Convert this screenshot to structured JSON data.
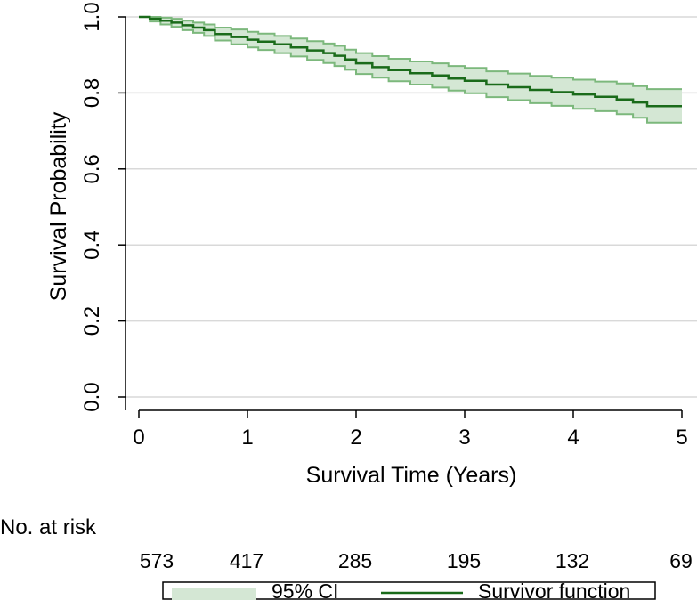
{
  "chart_data": {
    "type": "line",
    "title": "",
    "xlabel": "Survival Time (Years)",
    "ylabel": "Survival Probability",
    "xlim": [
      0,
      5
    ],
    "ylim": [
      0,
      1
    ],
    "x_ticks": [
      0,
      1,
      2,
      3,
      4,
      5
    ],
    "x_tick_labels": [
      "0",
      "1",
      "2",
      "3",
      "4",
      "5"
    ],
    "y_ticks": [
      0,
      0.2,
      0.4,
      0.6,
      0.8,
      1.0
    ],
    "y_tick_labels": [
      "0.0",
      "0.2",
      "0.4",
      "0.6",
      "0.8",
      "1.0"
    ],
    "grid": true,
    "series": [
      {
        "name": "Survivor function",
        "color": "#1a6b1a",
        "step": true,
        "x": [
          0,
          0.1,
          0.2,
          0.3,
          0.4,
          0.5,
          0.6,
          0.7,
          0.85,
          1.0,
          1.1,
          1.25,
          1.4,
          1.55,
          1.7,
          1.8,
          1.9,
          2.0,
          2.15,
          2.3,
          2.5,
          2.7,
          2.85,
          3.0,
          3.2,
          3.4,
          3.6,
          3.8,
          4.0,
          4.2,
          4.4,
          4.55,
          4.68,
          5.0
        ],
        "values": [
          1.0,
          0.995,
          0.99,
          0.985,
          0.978,
          0.972,
          0.965,
          0.955,
          0.947,
          0.94,
          0.935,
          0.928,
          0.92,
          0.912,
          0.905,
          0.898,
          0.888,
          0.878,
          0.868,
          0.86,
          0.852,
          0.846,
          0.838,
          0.832,
          0.822,
          0.815,
          0.808,
          0.802,
          0.796,
          0.79,
          0.783,
          0.775,
          0.765,
          0.765
        ]
      },
      {
        "name": "95% CI",
        "color": "#7cb87c",
        "fill": "#d4e7d4",
        "step": true,
        "x": [
          0,
          0.1,
          0.2,
          0.3,
          0.4,
          0.5,
          0.6,
          0.7,
          0.85,
          1.0,
          1.1,
          1.25,
          1.4,
          1.55,
          1.7,
          1.8,
          1.9,
          2.0,
          2.15,
          2.3,
          2.5,
          2.7,
          2.85,
          3.0,
          3.2,
          3.4,
          3.6,
          3.8,
          4.0,
          4.2,
          4.4,
          4.55,
          4.68,
          5.0
        ],
        "upper": [
          1.0,
          1.0,
          0.998,
          0.995,
          0.99,
          0.985,
          0.98,
          0.972,
          0.967,
          0.961,
          0.956,
          0.95,
          0.943,
          0.936,
          0.93,
          0.924,
          0.914,
          0.905,
          0.897,
          0.89,
          0.883,
          0.878,
          0.871,
          0.866,
          0.857,
          0.851,
          0.845,
          0.84,
          0.835,
          0.83,
          0.825,
          0.818,
          0.81,
          0.81
        ],
        "lower": [
          1.0,
          0.988,
          0.98,
          0.974,
          0.965,
          0.958,
          0.95,
          0.938,
          0.928,
          0.92,
          0.913,
          0.905,
          0.896,
          0.887,
          0.879,
          0.871,
          0.861,
          0.85,
          0.84,
          0.831,
          0.822,
          0.814,
          0.806,
          0.799,
          0.789,
          0.781,
          0.773,
          0.766,
          0.758,
          0.752,
          0.744,
          0.735,
          0.722,
          0.722
        ]
      }
    ],
    "risk_table": {
      "title": "No. at risk",
      "times": [
        0,
        1,
        2,
        3,
        4,
        5
      ],
      "values": [
        "573",
        "417",
        "285",
        "195",
        "132",
        "69"
      ]
    },
    "legend": {
      "position": "bottom",
      "entries": [
        "95% CI",
        "Survivor function"
      ]
    }
  }
}
